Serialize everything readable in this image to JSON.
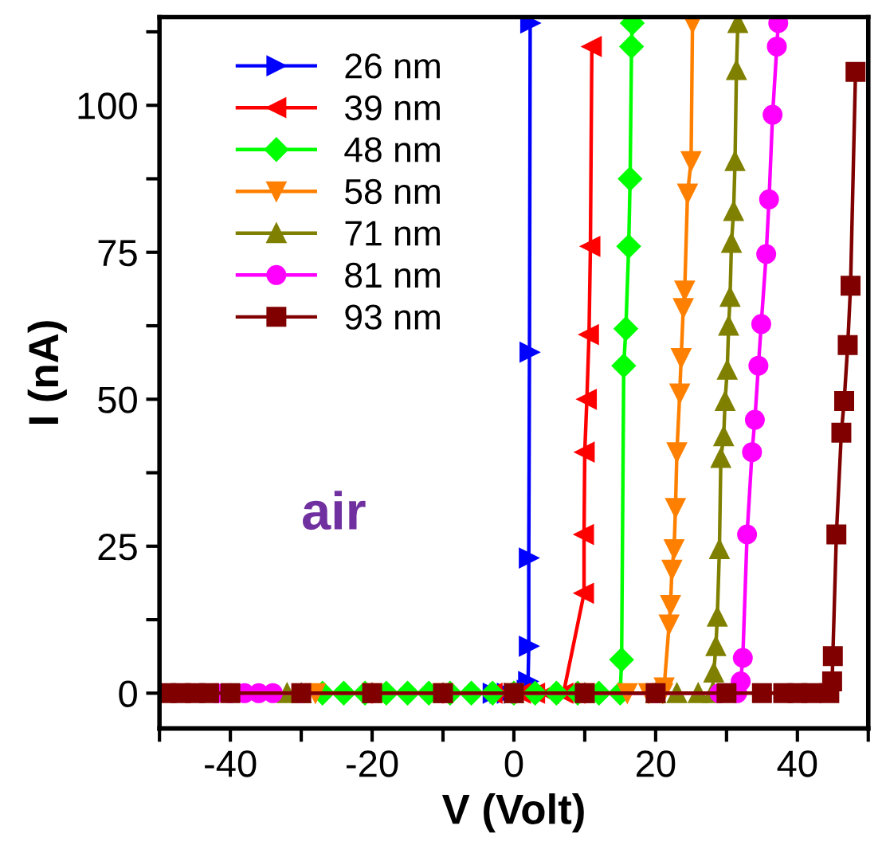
{
  "chart_data": {
    "type": "line",
    "xlabel": "V (Volt)",
    "ylabel": "I (nA)",
    "xlim": [
      -50,
      50
    ],
    "ylim": [
      -6,
      115
    ],
    "xticks": [
      {
        "value": -50,
        "label": null
      },
      -40,
      {
        "value": -30,
        "label": null
      },
      -20,
      {
        "value": -10,
        "label": null
      },
      0,
      {
        "value": 10,
        "label": null
      },
      20,
      {
        "value": 30,
        "label": null
      },
      40,
      {
        "value": 50,
        "label": null
      }
    ],
    "yticks": [
      0,
      {
        "value": 12.5,
        "label": null
      },
      25,
      {
        "value": 37.5,
        "label": null
      },
      50,
      {
        "value": 62.5,
        "label": null
      },
      75,
      {
        "value": 87.5,
        "label": null
      },
      100,
      {
        "value": 112.5,
        "label": null
      }
    ],
    "grid": false,
    "legend": "top left",
    "line_style": "solid",
    "annotations": [
      "air"
    ],
    "series": [
      {
        "name": "26 nm",
        "color": "#0000ff",
        "marker": "triangle-right",
        "x": [
          -3,
          -2,
          -1,
          0,
          1,
          1.8,
          2,
          2.1,
          2.1,
          2.2,
          2.3
        ],
        "values": [
          0,
          0,
          0,
          0,
          0,
          0.5,
          2,
          8,
          23,
          58,
          114
        ]
      },
      {
        "name": "39 nm",
        "color": "#ff0000",
        "marker": "triangle-left",
        "x": [
          -3,
          -1,
          1,
          3,
          5,
          7,
          9.9,
          9.9,
          10.0,
          10.3,
          10.6,
          10.8,
          11.0
        ],
        "values": [
          0,
          0,
          0,
          0,
          0,
          0,
          17,
          27,
          41,
          50,
          61,
          76,
          110
        ]
      },
      {
        "name": "48 nm",
        "color": "#00ff00",
        "marker": "diamond",
        "x": [
          -27,
          -24,
          -21,
          -18,
          -15,
          -12,
          -9,
          -6,
          -3,
          0,
          3,
          6,
          9,
          12,
          15,
          15.2,
          15.5,
          15.8,
          16.2,
          16.4,
          16.6,
          16.7
        ],
        "values": [
          0,
          0,
          0,
          0,
          0,
          0,
          0,
          0,
          0,
          0,
          0,
          0,
          0,
          0,
          0,
          5.7,
          55.7,
          62,
          76,
          87.5,
          110,
          114
        ]
      },
      {
        "name": "58 nm",
        "color": "#ff8000",
        "marker": "triangle-down",
        "x": [
          -28,
          -20,
          -10,
          0,
          10,
          16,
          19,
          21,
          21.2,
          21.9,
          22.1,
          22.3,
          22.6,
          22.8,
          23,
          23.4,
          23.6,
          23.9,
          24.1,
          24.5,
          25,
          25.2
        ],
        "values": [
          0,
          0,
          0,
          0,
          0,
          0,
          0,
          0,
          1,
          11.7,
          15,
          21,
          24.5,
          31.5,
          41,
          51,
          57,
          65.5,
          68.5,
          85,
          90.5,
          114
        ]
      },
      {
        "name": "71 nm",
        "color": "#808000",
        "marker": "triangle",
        "x": [
          -32,
          -30,
          -20,
          -10,
          0,
          10,
          20,
          23,
          26,
          28,
          28.2,
          28.5,
          28.7,
          29,
          29.2,
          29.6,
          29.8,
          30.1,
          30.3,
          30.5,
          30.7,
          31,
          31.2,
          31.4,
          31.6
        ],
        "values": [
          0,
          0,
          0,
          0,
          0,
          0,
          0,
          0,
          0,
          0,
          3.5,
          8,
          13,
          24.5,
          40,
          43.7,
          49.7,
          55,
          62.5,
          67.4,
          76.6,
          82,
          90.5,
          106,
          114
        ]
      },
      {
        "name": "81 nm",
        "color": "#ff00ff",
        "marker": "circle",
        "x": [
          -42,
          -40,
          -38,
          -36,
          -34,
          -30,
          -20,
          -10,
          0,
          10,
          20,
          29,
          31.5,
          32,
          32.3,
          32.9,
          33.6,
          34,
          34.5,
          34.9,
          35.6,
          36,
          36.5,
          37.1,
          37.3
        ],
        "values": [
          0,
          0,
          0,
          0,
          0,
          0,
          0,
          0,
          0,
          0,
          0,
          0,
          0,
          2,
          6,
          27,
          41,
          46.5,
          55.7,
          62.8,
          74.7,
          84,
          98.4,
          110,
          114
        ]
      },
      {
        "name": "93 nm",
        "color": "#800000",
        "marker": "square",
        "x": [
          -49,
          -47,
          -45,
          -43,
          -40,
          -30,
          -20,
          -10,
          0,
          10,
          20,
          30,
          35,
          38,
          40,
          42,
          44.5,
          44.9,
          45,
          45.5,
          46.2,
          46.6,
          47.1,
          47.5,
          48.2
        ],
        "values": [
          0,
          0,
          0,
          0,
          0,
          0,
          0,
          0,
          0,
          0,
          0,
          0,
          0,
          0,
          0,
          0,
          0,
          2,
          6.3,
          27,
          44.3,
          49.7,
          59.2,
          69.3,
          105.7
        ]
      }
    ]
  }
}
